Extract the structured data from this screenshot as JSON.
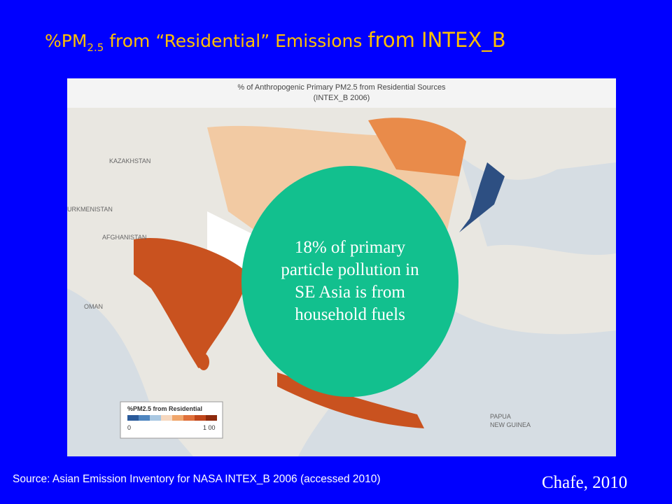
{
  "slide": {
    "title": {
      "prefix": "%PM",
      "subscript": "2.5",
      "middle": " from “Residential” Emissions ",
      "suffix": "from INTEX_B"
    },
    "map": {
      "title": [
        "% of Anthropogenic Primary PM2.5 from Residential Sources",
        "(INTEX_B 2006)"
      ],
      "labels": [
        "KAZAKHSTAN",
        "URKMENISTAN",
        "AFGHANISTAN",
        "OMAN",
        "PAPUA",
        "NEW GUINEA"
      ],
      "legend": {
        "title": "%PM2.5 from Residential",
        "min": "0",
        "max": "1 00"
      }
    },
    "callout": "18% of primary particle pollution in SE Asia is from household fuels",
    "source": "Source: Asian Emission Inventory for NASA INTEX_B 2006 (accessed 2010)",
    "credit": "Chafe, 2010"
  }
}
